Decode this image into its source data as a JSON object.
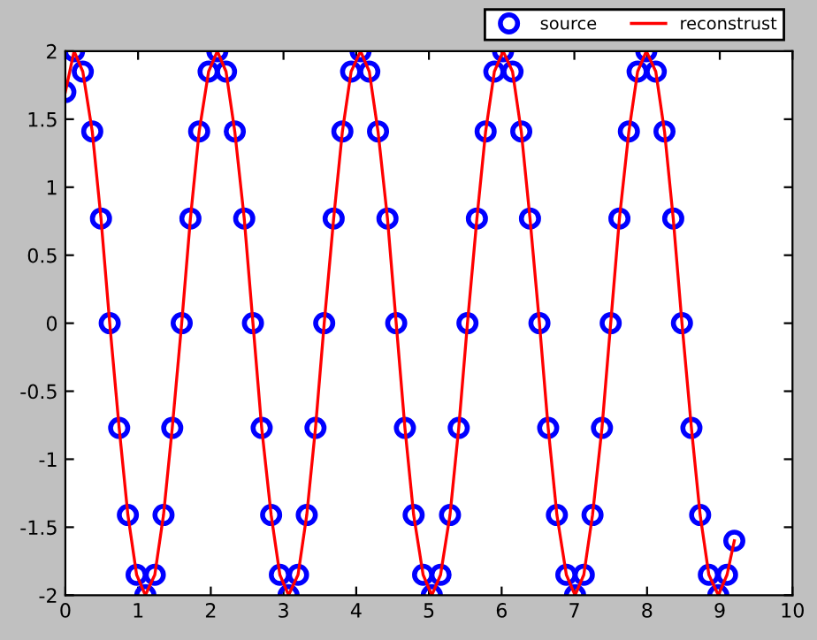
{
  "chart_data": {
    "type": "line",
    "x": [
      0,
      0.12,
      0.24,
      0.37,
      0.49,
      0.61,
      0.74,
      0.86,
      0.98,
      1.1,
      1.23,
      1.35,
      1.47,
      1.6,
      1.72,
      1.84,
      1.97,
      2.09,
      2.21,
      2.33,
      2.46,
      2.58,
      2.7,
      2.83,
      2.95,
      3.07,
      3.2,
      3.32,
      3.44,
      3.56,
      3.69,
      3.81,
      3.93,
      4.06,
      4.18,
      4.3,
      4.43,
      4.55,
      4.67,
      4.79,
      4.92,
      5.04,
      5.16,
      5.29,
      5.41,
      5.53,
      5.66,
      5.78,
      5.9,
      6.02,
      6.15,
      6.27,
      6.39,
      6.52,
      6.64,
      6.76,
      6.89,
      7.01,
      7.13,
      7.25,
      7.38,
      7.5,
      7.62,
      7.75,
      7.87,
      7.99,
      8.12,
      8.24,
      8.36,
      8.48,
      8.61,
      8.73,
      8.85,
      8.98,
      9.1,
      9.2
    ],
    "series": [
      {
        "name": "source",
        "type": "scatter",
        "marker": "circle",
        "color": "#0000ff",
        "values": [
          1.7,
          2,
          1.85,
          1.41,
          0.77,
          0,
          -0.77,
          -1.41,
          -1.85,
          -2,
          -1.85,
          -1.41,
          -0.77,
          0,
          0.77,
          1.41,
          1.85,
          2,
          1.85,
          1.41,
          0.77,
          0,
          -0.77,
          -1.41,
          -1.85,
          -2,
          -1.85,
          -1.41,
          -0.77,
          0,
          0.77,
          1.41,
          1.85,
          2,
          1.85,
          1.41,
          0.77,
          0,
          -0.77,
          -1.41,
          -1.85,
          -2,
          -1.85,
          -1.41,
          -0.77,
          0,
          0.77,
          1.41,
          1.85,
          2,
          1.85,
          1.41,
          0.77,
          0,
          -0.77,
          -1.41,
          -1.85,
          -2,
          -1.85,
          -1.41,
          -0.77,
          0,
          0.77,
          1.41,
          1.85,
          2,
          1.85,
          1.41,
          0.77,
          0,
          -0.77,
          -1.41,
          -1.85,
          -2,
          -1.85,
          -1.6
        ]
      },
      {
        "name": "reconstrust",
        "line_style": "solid",
        "color": "#ff0000",
        "values": [
          1.7,
          2,
          1.85,
          1.41,
          0.77,
          0,
          -0.77,
          -1.41,
          -1.85,
          -2,
          -1.85,
          -1.41,
          -0.77,
          0,
          0.77,
          1.41,
          1.85,
          2,
          1.85,
          1.41,
          0.77,
          0,
          -0.77,
          -1.41,
          -1.85,
          -2,
          -1.85,
          -1.41,
          -0.77,
          0,
          0.77,
          1.41,
          1.85,
          2,
          1.85,
          1.41,
          0.77,
          0,
          -0.77,
          -1.41,
          -1.85,
          -2,
          -1.85,
          -1.41,
          -0.77,
          0,
          0.77,
          1.41,
          1.85,
          2,
          1.85,
          1.41,
          0.77,
          0,
          -0.77,
          -1.41,
          -1.85,
          -2,
          -1.85,
          -1.41,
          -0.77,
          0,
          0.77,
          1.41,
          1.85,
          2,
          1.85,
          1.41,
          0.77,
          0,
          -0.77,
          -1.41,
          -1.85,
          -2,
          -1.85,
          -1.6
        ]
      }
    ],
    "xlim": [
      0,
      10
    ],
    "xticks": [
      0,
      1,
      2,
      3,
      4,
      5,
      6,
      7,
      8,
      9,
      10
    ],
    "ylim": [
      -2,
      2
    ],
    "yticks": [
      -2,
      -1.5,
      -1,
      -0.5,
      0,
      0.5,
      1,
      1.5,
      2
    ],
    "grid": false,
    "legend": "top"
  }
}
